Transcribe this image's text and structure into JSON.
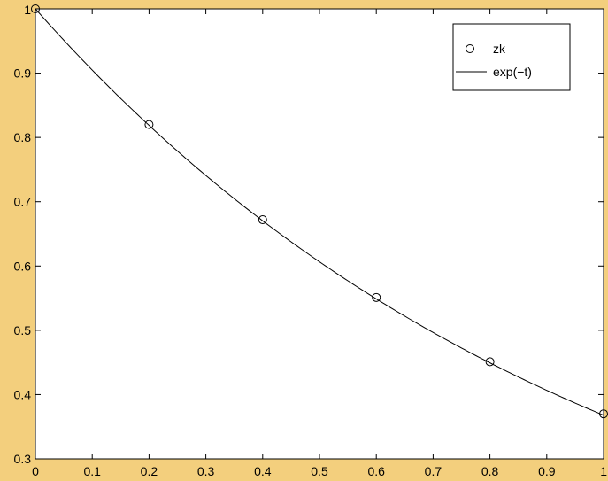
{
  "colors": {
    "figure_background": "#f3cf7d",
    "axes_background": "#ffffff",
    "ink": "#000000"
  },
  "chart_data": {
    "type": "line",
    "title": "",
    "xlabel": "",
    "ylabel": "",
    "xlim": [
      0,
      1
    ],
    "ylim": [
      0.3,
      1
    ],
    "x_ticks": [
      0,
      0.1,
      0.2,
      0.3,
      0.4,
      0.5,
      0.6,
      0.7,
      0.8,
      0.9,
      1
    ],
    "x_tick_labels": [
      "0",
      "0.1",
      "0.2",
      "0.3",
      "0.4",
      "0.5",
      "0.6",
      "0.7",
      "0.8",
      "0.9",
      "1"
    ],
    "y_ticks": [
      0.3,
      0.4,
      0.5,
      0.6,
      0.7,
      0.8,
      0.9,
      1
    ],
    "y_tick_labels": [
      "0.3",
      "0.4",
      "0.5",
      "0.6",
      "0.7",
      "0.8",
      "0.9",
      "1"
    ],
    "grid": false,
    "legend": {
      "position": "top-right",
      "entries": [
        "zk",
        "exp(−t)"
      ]
    },
    "series": [
      {
        "name": "zk",
        "style": "markers",
        "marker": "circle",
        "x": [
          0,
          0.2,
          0.4,
          0.6,
          0.8,
          1
        ],
        "y": [
          1.0,
          0.82,
          0.672,
          0.551,
          0.451,
          0.37
        ]
      },
      {
        "name": "exp(−t)",
        "style": "line",
        "function": "exp(-t)",
        "x_range": [
          0,
          1
        ]
      }
    ]
  }
}
